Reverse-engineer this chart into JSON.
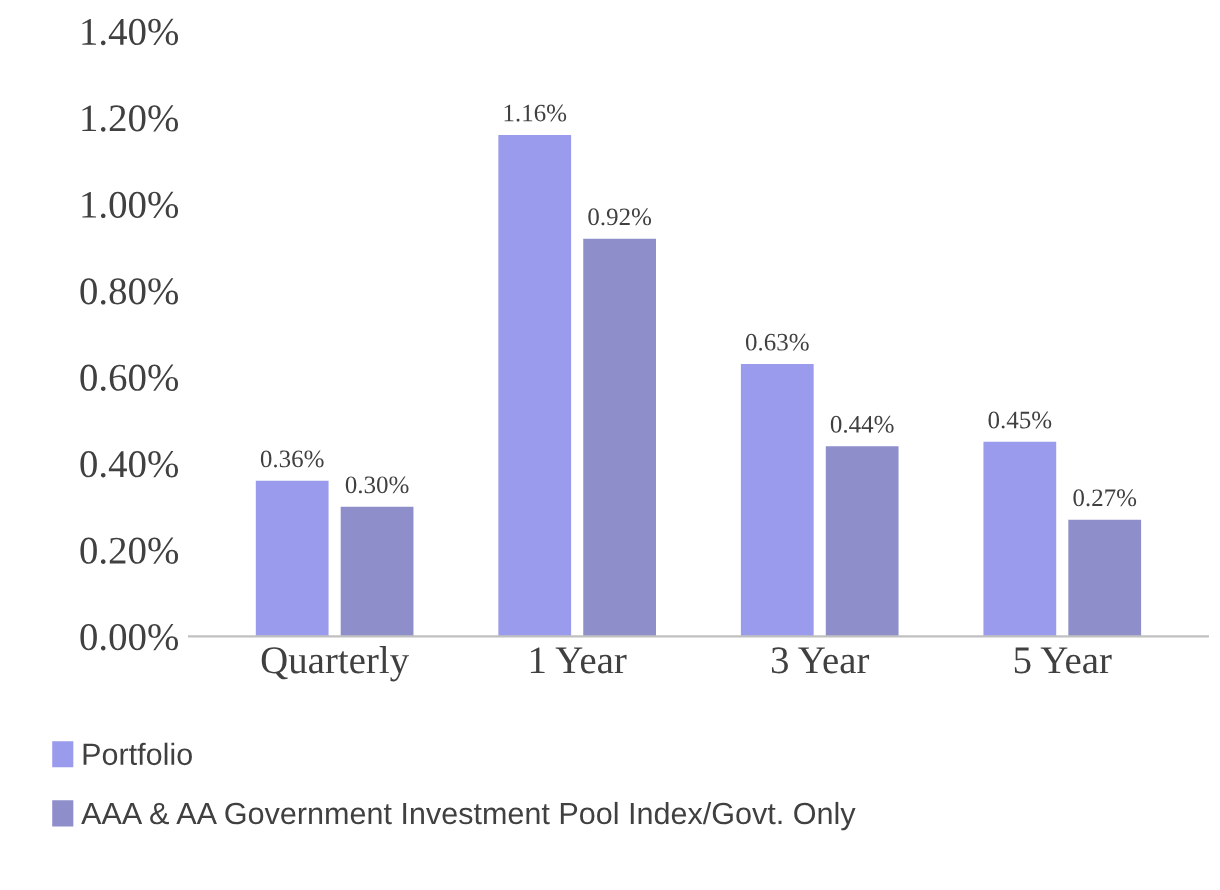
{
  "chart_data": {
    "type": "bar",
    "categories": [
      "Quarterly",
      "1 Year",
      "3 Year",
      "5 Year"
    ],
    "series": [
      {
        "name": "Portfolio",
        "color": "#9b9bee",
        "values": [
          0.36,
          1.16,
          0.63,
          0.45
        ]
      },
      {
        "name": "AAA & AA Government Investment Pool Index/Govt. Only",
        "color": "#8e8ecb",
        "values": [
          0.3,
          0.92,
          0.44,
          0.27
        ]
      }
    ],
    "value_labels": [
      [
        "0.36%",
        "1.16%",
        "0.63%",
        "0.45%"
      ],
      [
        "0.30%",
        "0.92%",
        "0.44%",
        "0.27%"
      ]
    ],
    "ylim": [
      0,
      1.4
    ],
    "yticks": [
      {
        "value": 0,
        "label": "0.00%"
      },
      {
        "value": 0.2,
        "label": "0.20%"
      },
      {
        "value": 0.4,
        "label": "0.40%"
      },
      {
        "value": 0.6,
        "label": "0.60%"
      },
      {
        "value": 0.8,
        "label": "0.80%"
      },
      {
        "value": 1.0,
        "label": "1.00%"
      },
      {
        "value": 1.2,
        "label": "1.20%"
      },
      {
        "value": 1.4,
        "label": "1.40%"
      }
    ],
    "grid": false,
    "legend": "bottom"
  }
}
